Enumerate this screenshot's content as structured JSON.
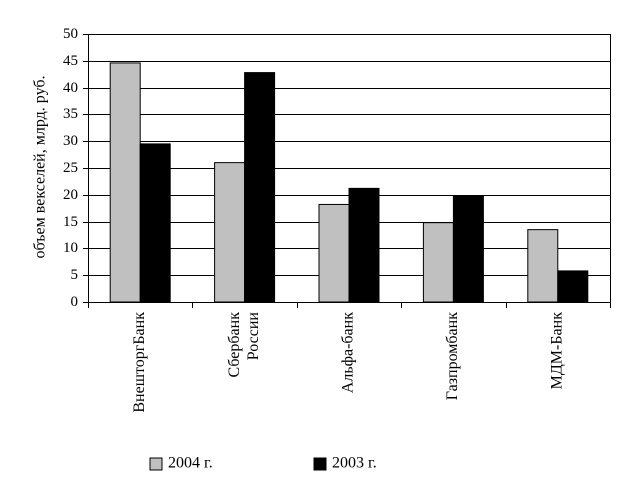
{
  "chart_data": {
    "type": "bar",
    "categories": [
      [
        "ВнешторгБанк"
      ],
      [
        "Сбербанк",
        "России"
      ],
      [
        "Альфа-банк"
      ],
      [
        "Газпромбанк"
      ],
      [
        "МДМ-Банк"
      ]
    ],
    "series": [
      {
        "name": "2004 г.",
        "color": "#c0c0c0",
        "values": [
          44.6,
          26,
          18.2,
          14.8,
          13.5
        ]
      },
      {
        "name": "2003 г.",
        "color": "#000000",
        "values": [
          29.5,
          42.8,
          21.2,
          19.7,
          5.8
        ]
      }
    ],
    "ylabel": "объем векселей, млрд. руб.",
    "ylim": [
      0,
      50
    ],
    "yticks": [
      0,
      5,
      10,
      15,
      20,
      25,
      30,
      35,
      40,
      45,
      50
    ],
    "grid": true,
    "legend_position": "bottom"
  }
}
